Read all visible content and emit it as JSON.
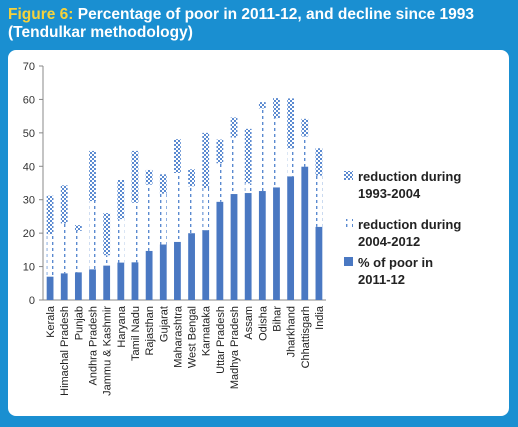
{
  "title": {
    "lead": "Figure 6:",
    "text_line1": " Percentage of poor in 2011-12, and decline since 1993",
    "text_line2": "(Tendulkar methodology)"
  },
  "colors": {
    "background": "#1a8fd1",
    "title_lead": "#f6d23b",
    "bar": "#4a78c2",
    "hatch": "#5b8ad0"
  },
  "chart_data": {
    "type": "bar",
    "stacked": true,
    "categories": [
      "Kerala",
      "Himachal Pradesh",
      "Punjab",
      "Andhra Pradesh",
      "Jammu & Kashmir",
      "Haryana",
      "Tamil Nadu",
      "Rajasthan",
      "Gujarat",
      "Maharashtra",
      "West Bengal",
      "Karnataka",
      "Uttar Pradesh",
      "Madhya Pradesh",
      "Assam",
      "Odisha",
      "Bihar",
      "Jharkhand",
      "Chhattisgarh",
      "India"
    ],
    "series": [
      {
        "name": "% of poor in 2011-12",
        "style": "solid",
        "values": [
          7,
          8,
          8.3,
          9.2,
          10.3,
          11.2,
          11.3,
          14.7,
          16.6,
          17.4,
          20,
          20.9,
          29.4,
          31.7,
          32,
          32.6,
          33.7,
          37,
          39.9,
          21.9
        ]
      },
      {
        "name": "reduction during 2004-2012",
        "style": "dashed",
        "values": [
          12.7,
          14.9,
          12.4,
          20.4,
          3.1,
          13,
          17.8,
          19.8,
          15.2,
          20.6,
          14,
          12.6,
          11.5,
          16.9,
          2.9,
          24.7,
          20.7,
          8.3,
          9,
          15.3
        ]
      },
      {
        "name": "reduction during 1993-2004",
        "style": "hatched",
        "values": [
          11.5,
          11.4,
          1.7,
          15,
          12.6,
          11.7,
          15.5,
          4.4,
          5.8,
          10.1,
          5.1,
          16.5,
          7.1,
          6,
          16.3,
          1.9,
          6,
          15,
          5.3,
          8.2
        ]
      }
    ],
    "ylim": [
      0,
      70
    ],
    "yticks": [
      0,
      10,
      20,
      30,
      40,
      50,
      60,
      70
    ],
    "legend_position": "right",
    "grid": false
  }
}
